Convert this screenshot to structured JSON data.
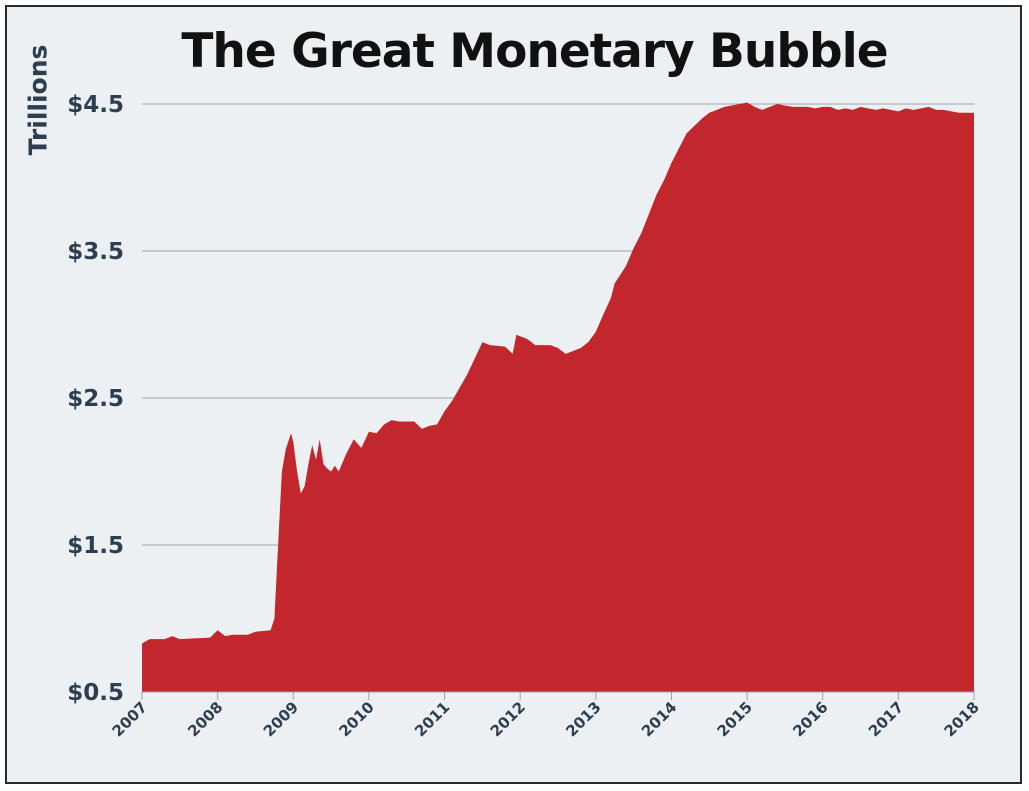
{
  "chart_data": {
    "type": "area",
    "title": "The Great Monetary Bubble",
    "ylabel": "Trillions",
    "xlabel": "",
    "xlim": [
      2007,
      2018
    ],
    "ylim": [
      0.5,
      4.5
    ],
    "x_ticks": [
      "2007",
      "2008",
      "2009",
      "2010",
      "2011",
      "2012",
      "2013",
      "2014",
      "2015",
      "2016",
      "2017",
      "2018"
    ],
    "y_ticks": [
      {
        "value": 0.5,
        "label": "$0.5"
      },
      {
        "value": 1.5,
        "label": "$1.5"
      },
      {
        "value": 2.5,
        "label": "$2.5"
      },
      {
        "value": 3.5,
        "label": "$3.5"
      },
      {
        "value": 4.5,
        "label": "$4.5"
      }
    ],
    "grid": true,
    "fill_color": "#c1272d",
    "series": [
      {
        "x": [
          2007.0,
          2007.1,
          2007.3,
          2007.4,
          2007.5,
          2007.9,
          2008.0,
          2008.1,
          2008.2,
          2008.4,
          2008.5,
          2008.7,
          2008.75,
          2008.8,
          2008.85,
          2008.9,
          2008.97,
          2009.0,
          2009.05,
          2009.1,
          2009.15,
          2009.2,
          2009.25,
          2009.3,
          2009.35,
          2009.4,
          2009.45,
          2009.5,
          2009.55,
          2009.6,
          2009.7,
          2009.8,
          2009.9,
          2010.0,
          2010.1,
          2010.2,
          2010.3,
          2010.4,
          2010.5,
          2010.6,
          2010.7,
          2010.8,
          2010.9,
          2011.0,
          2011.1,
          2011.3,
          2011.5,
          2011.6,
          2011.8,
          2011.9,
          2011.95,
          2012.0,
          2012.1,
          2012.2,
          2012.3,
          2012.4,
          2012.5,
          2012.6,
          2012.7,
          2012.8,
          2012.9,
          2013.0,
          2013.1,
          2013.2,
          2013.25,
          2013.3,
          2013.4,
          2013.5,
          2013.6,
          2013.7,
          2013.8,
          2013.9,
          2014.0,
          2014.1,
          2014.2,
          2014.3,
          2014.4,
          2014.5,
          2014.6,
          2014.7,
          2014.8,
          2014.9,
          2015.0,
          2015.1,
          2015.2,
          2015.3,
          2015.4,
          2015.5,
          2015.6,
          2015.8,
          2015.9,
          2016.0,
          2016.1,
          2016.2,
          2016.3,
          2016.4,
          2016.5,
          2016.6,
          2016.7,
          2016.8,
          2016.9,
          2017.0,
          2017.1,
          2017.2,
          2017.3,
          2017.4,
          2017.5,
          2017.6,
          2017.7,
          2017.8,
          2017.9,
          2018.0
        ],
        "values": [
          0.83,
          0.86,
          0.86,
          0.88,
          0.86,
          0.87,
          0.92,
          0.88,
          0.89,
          0.89,
          0.91,
          0.92,
          1.0,
          1.5,
          2.0,
          2.15,
          2.26,
          2.2,
          2.0,
          1.85,
          1.9,
          2.05,
          2.18,
          2.08,
          2.22,
          2.05,
          2.02,
          2.0,
          2.04,
          2.0,
          2.12,
          2.22,
          2.16,
          2.27,
          2.26,
          2.32,
          2.35,
          2.34,
          2.34,
          2.34,
          2.29,
          2.31,
          2.32,
          2.41,
          2.48,
          2.66,
          2.88,
          2.86,
          2.85,
          2.8,
          2.93,
          2.92,
          2.9,
          2.86,
          2.86,
          2.86,
          2.84,
          2.8,
          2.82,
          2.84,
          2.88,
          2.95,
          3.07,
          3.18,
          3.28,
          3.32,
          3.4,
          3.52,
          3.62,
          3.75,
          3.88,
          3.98,
          4.1,
          4.2,
          4.3,
          4.35,
          4.4,
          4.44,
          4.46,
          4.48,
          4.49,
          4.5,
          4.51,
          4.48,
          4.46,
          4.48,
          4.5,
          4.49,
          4.48,
          4.48,
          4.47,
          4.48,
          4.48,
          4.46,
          4.47,
          4.46,
          4.48,
          4.47,
          4.46,
          4.47,
          4.46,
          4.45,
          4.47,
          4.46,
          4.47,
          4.48,
          4.46,
          4.46,
          4.45,
          4.44,
          4.44,
          4.44
        ]
      }
    ]
  }
}
